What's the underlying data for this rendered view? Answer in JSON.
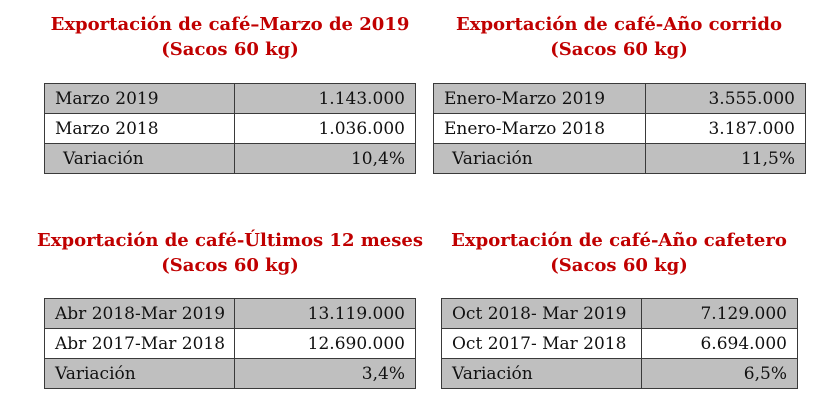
{
  "blocks": [
    {
      "title_line1": "Exportación de café–Marzo de 2019",
      "title_line2": "(Sacos 60 kg)",
      "rows": [
        {
          "label": "Marzo 2019",
          "value": "1.143.000"
        },
        {
          "label": "Marzo 2018",
          "value": "1.036.000"
        },
        {
          "label": "Variación",
          "value": "10,4%"
        }
      ]
    },
    {
      "title_line1": "Exportación de café-Año corrido",
      "title_line2": "(Sacos 60 kg)",
      "rows": [
        {
          "label": "Enero-Marzo 2019",
          "value": "3.555.000"
        },
        {
          "label": "Enero-Marzo 2018",
          "value": "3.187.000"
        },
        {
          "label": "Variación",
          "value": "11,5%"
        }
      ]
    },
    {
      "title_line1": "Exportación de café-Últimos 12 meses",
      "title_line2": "(Sacos 60 kg)",
      "rows": [
        {
          "label": "Abr 2018-Mar 2019",
          "value": "13.119.000"
        },
        {
          "label": "Abr 2017-Mar 2018",
          "value": "12.690.000"
        },
        {
          "label": "Variación",
          "value": "3,4%"
        }
      ]
    },
    {
      "title_line1": "Exportación de café-Año cafetero",
      "title_line2": "(Sacos 60 kg)",
      "rows": [
        {
          "label": "Oct 2018- Mar 2019",
          "value": "7.129.000"
        },
        {
          "label": "Oct 2017- Mar 2018",
          "value": "6.694.000"
        },
        {
          "label": "Variación",
          "value": "6,5%"
        }
      ]
    }
  ],
  "colors": {
    "title": "#c00000",
    "shaded_row": "#bfbfbf",
    "border": "#3a3a3a"
  }
}
